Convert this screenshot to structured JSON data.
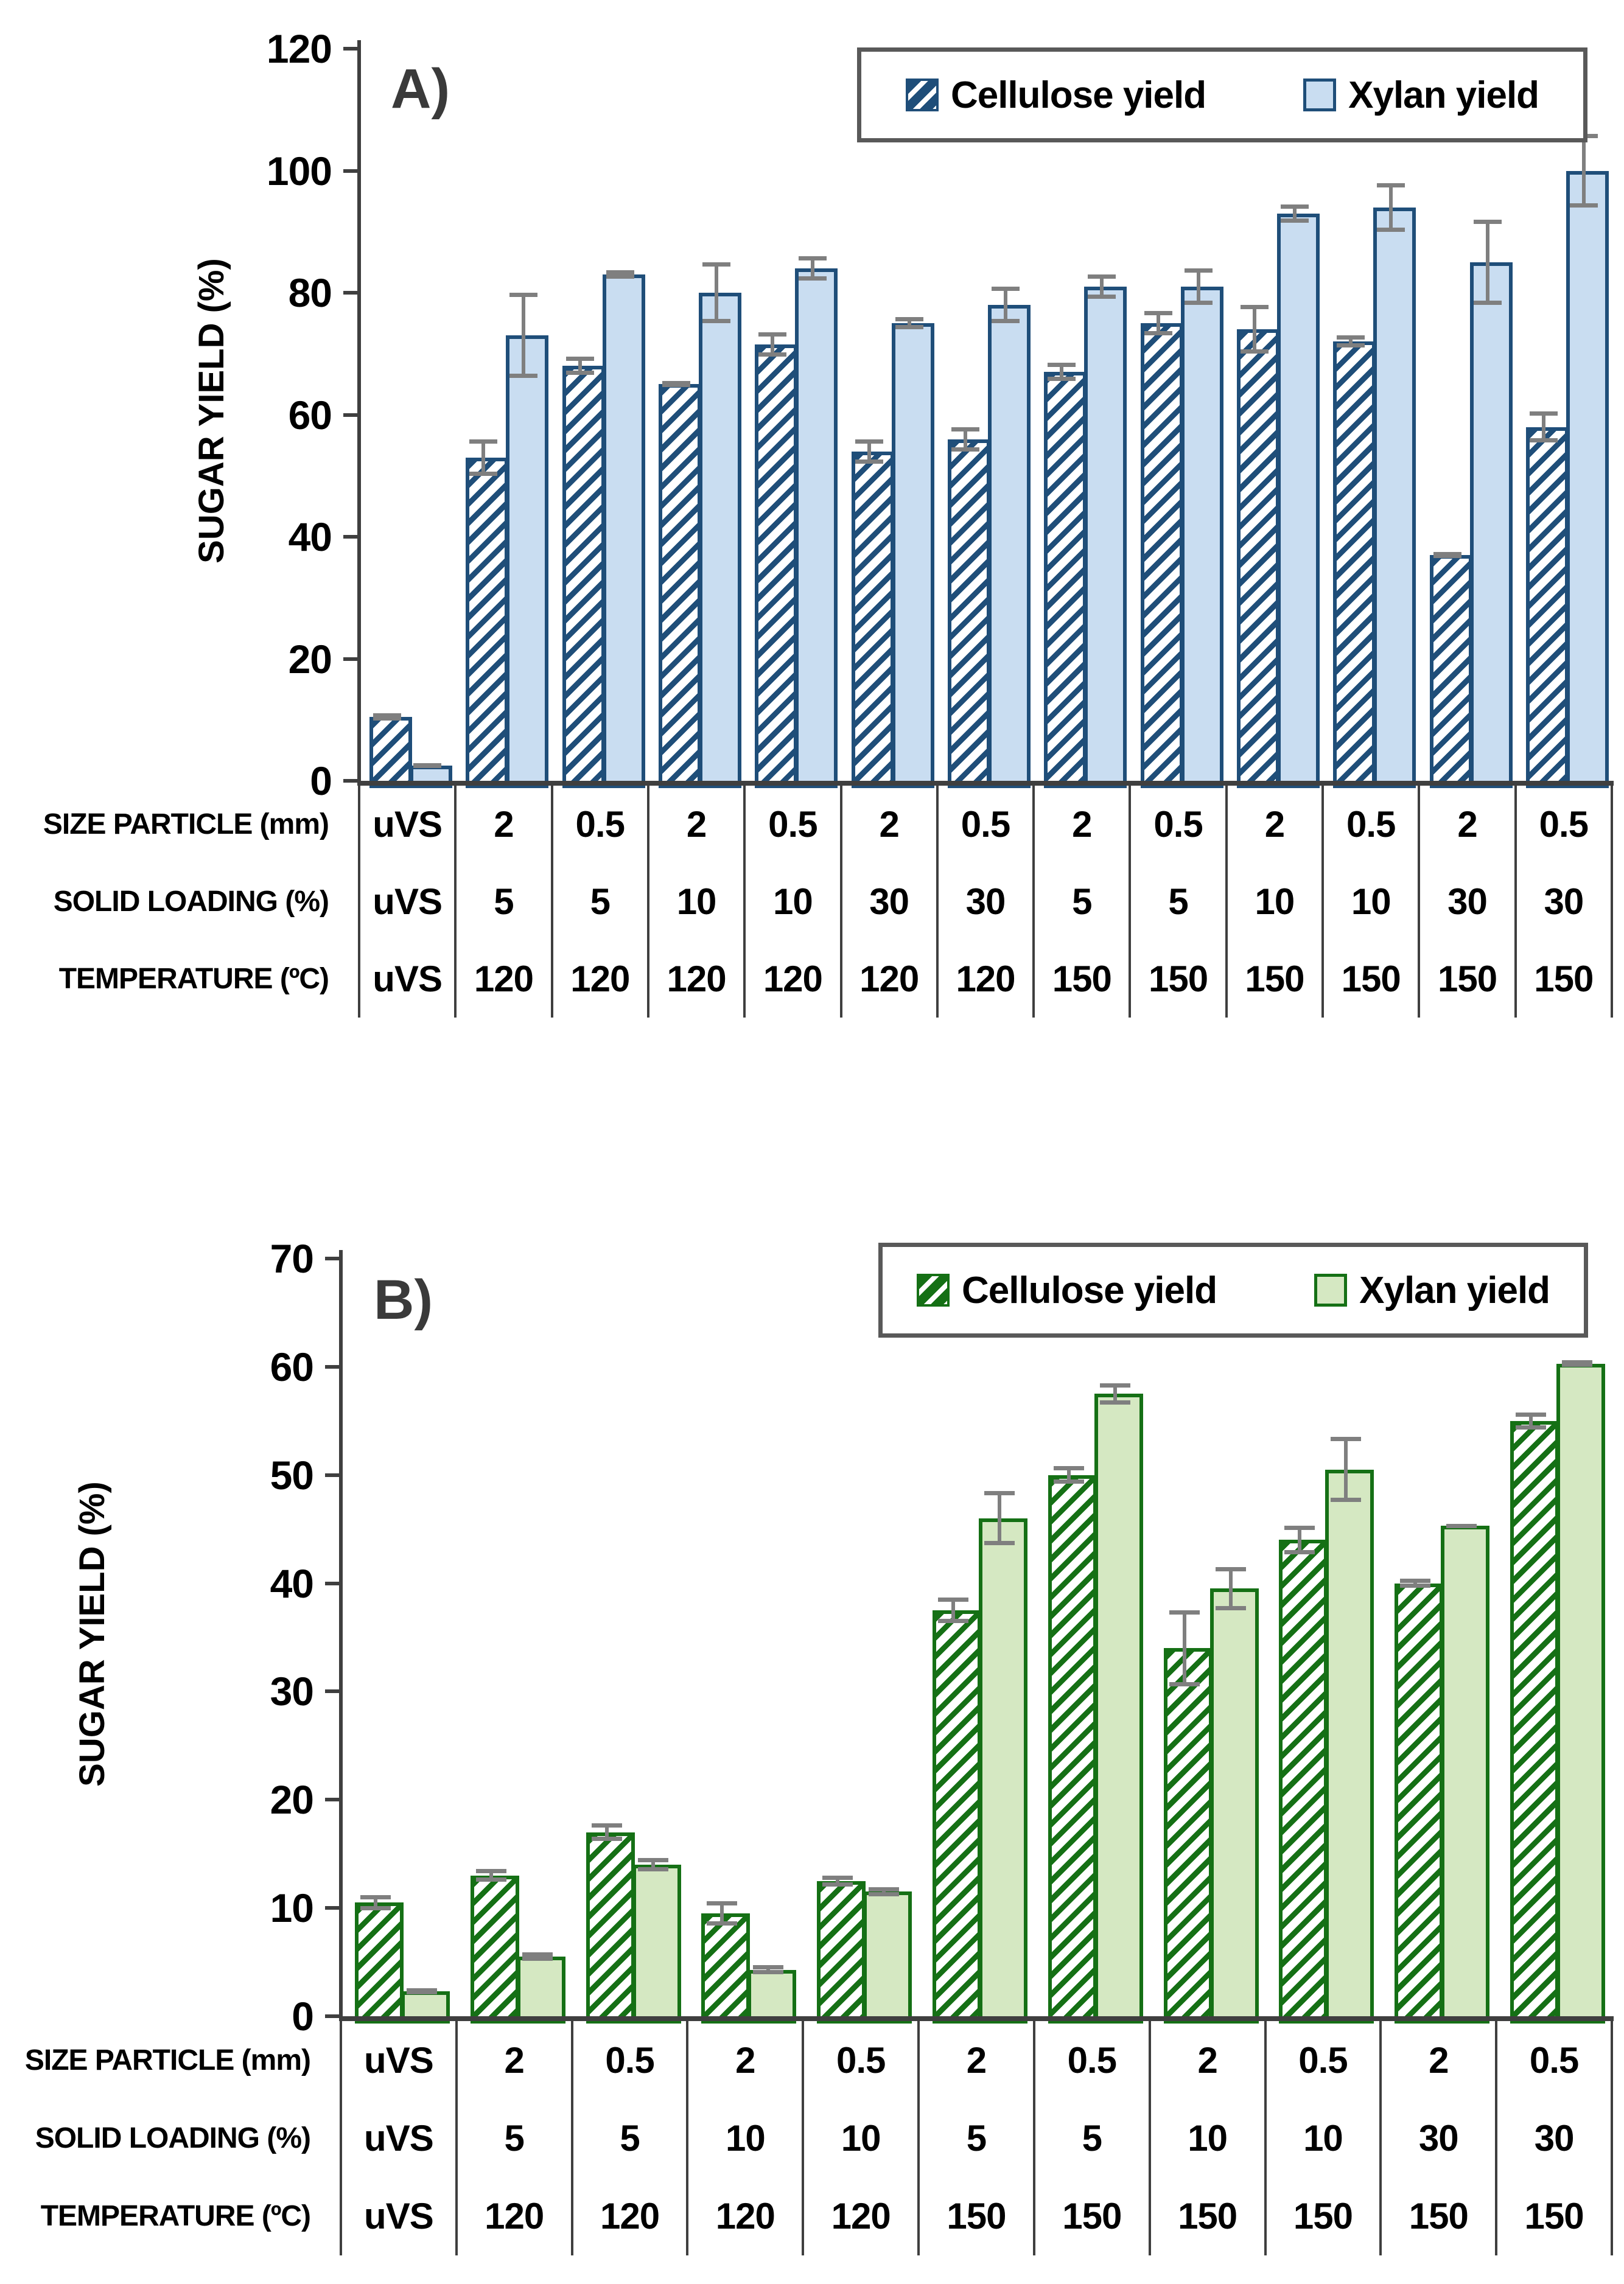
{
  "figure": {
    "ylabel": "SUGAR YIELD (%)",
    "row_labels": [
      "SIZE PARTICLE (mm)",
      "SOLID LOADING (%)",
      "TEMPERATURE (ºC)"
    ],
    "legend_labels": [
      "Cellulose yield",
      "Xylan yield"
    ]
  },
  "colors": {
    "axis": "#3f3f3f",
    "error_bar": "#7f7f7f",
    "legend_border": "#595959",
    "text": "#000000",
    "panel_a_dark_blue": "#1F4E79",
    "panel_a_light_blue": "#C9DDF1",
    "panel_b_dark_green": "#157015",
    "panel_b_light_green": "#D5E8C2"
  },
  "chart_data": [
    {
      "type": "bar",
      "panel_label": "A)",
      "ylabel": "SUGAR YIELD (%)",
      "ylim": [
        0,
        120
      ],
      "ystep": 20,
      "yticks": [
        "120",
        "100",
        "80",
        "60",
        "40",
        "20",
        "0"
      ],
      "grid": false,
      "legend_position": "top-right",
      "legend": [
        "Cellulose yield",
        "Xylan yield"
      ],
      "series_colors": {
        "dark": "#1F4E79",
        "light": "#C9DDF1"
      },
      "series": [
        {
          "name": "Cellulose yield",
          "style": "hatched",
          "values": [
            10.5,
            53,
            68,
            65,
            71.5,
            54,
            56,
            67,
            75,
            74,
            72,
            37,
            58
          ],
          "errors": [
            0.6,
            3,
            1.5,
            0.5,
            2,
            2,
            2,
            1.5,
            2,
            4,
            1,
            0.5,
            2.5
          ]
        },
        {
          "name": "Xylan yield",
          "style": "solid",
          "values": [
            2.5,
            73,
            83,
            80,
            84,
            75,
            78,
            81,
            81,
            93,
            94,
            85,
            100
          ],
          "errors": [
            0.4,
            7,
            0.7,
            5,
            2,
            1,
            3,
            2,
            3,
            1.5,
            4,
            7,
            6
          ]
        }
      ],
      "categories_table": {
        "row_labels": [
          "SIZE PARTICLE (mm)",
          "SOLID LOADING (%)",
          "TEMPERATURE (ºC)"
        ],
        "rows": [
          [
            "uVS",
            "2",
            "0.5",
            "2",
            "0.5",
            "2",
            "0.5",
            "2",
            "0.5",
            "2",
            "0.5",
            "2",
            "0.5"
          ],
          [
            "uVS",
            "5",
            "5",
            "10",
            "10",
            "30",
            "30",
            "5",
            "5",
            "10",
            "10",
            "30",
            "30"
          ],
          [
            "uVS",
            "120",
            "120",
            "120",
            "120",
            "120",
            "120",
            "150",
            "150",
            "150",
            "150",
            "150",
            "150"
          ]
        ]
      }
    },
    {
      "type": "bar",
      "panel_label": "B)",
      "ylabel": "SUGAR YIELD (%)",
      "ylim": [
        0,
        70
      ],
      "ystep": 10,
      "yticks": [
        "70",
        "60",
        "50",
        "40",
        "30",
        "20",
        "10",
        "0"
      ],
      "grid": false,
      "legend_position": "top-right",
      "legend": [
        "Cellulose yield",
        "Xylan yield"
      ],
      "series_colors": {
        "dark": "#157015",
        "light": "#D5E8C2"
      },
      "series": [
        {
          "name": "Cellulose yield",
          "style": "hatched",
          "values": [
            10.5,
            13,
            17,
            9.5,
            12.5,
            37.5,
            50,
            34,
            44,
            40,
            55
          ],
          "errors": [
            0.7,
            0.6,
            0.8,
            1.1,
            0.5,
            1.2,
            0.8,
            3.5,
            1.3,
            0.4,
            0.8
          ]
        },
        {
          "name": "Xylan yield",
          "style": "solid",
          "values": [
            2.3,
            5.5,
            14,
            4.3,
            11.5,
            46,
            57.5,
            39.5,
            50.5,
            45.3,
            60.3
          ],
          "errors": [
            0.3,
            0.4,
            0.6,
            0.4,
            0.4,
            2.5,
            1,
            2,
            3,
            0.2,
            0.3
          ]
        }
      ],
      "categories_table": {
        "row_labels": [
          "SIZE PARTICLE (mm)",
          "SOLID LOADING (%)",
          "TEMPERATURE (ºC)"
        ],
        "rows": [
          [
            "uVS",
            "2",
            "0.5",
            "2",
            "0.5",
            "2",
            "0.5",
            "2",
            "0.5",
            "2",
            "0.5"
          ],
          [
            "uVS",
            "5",
            "5",
            "10",
            "10",
            "5",
            "5",
            "10",
            "10",
            "30",
            "30"
          ],
          [
            "uVS",
            "120",
            "120",
            "120",
            "120",
            "150",
            "150",
            "150",
            "150",
            "150",
            "150"
          ]
        ]
      }
    }
  ]
}
